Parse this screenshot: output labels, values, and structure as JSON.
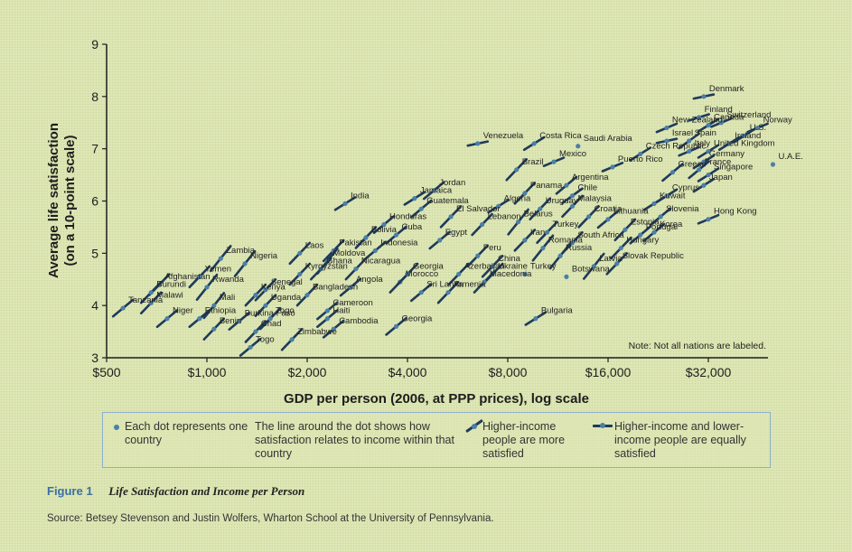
{
  "chart_data": {
    "type": "scatter",
    "xlabel": "GDP per person (2006, at PPP prices), log scale",
    "ylabel_line1": "Average life satisfaction",
    "ylabel_line2": "(on a 10-point scale)",
    "x_scale": "log",
    "xlim": [
      500,
      55000
    ],
    "ylim": [
      3,
      9
    ],
    "x_ticks": [
      500,
      1000,
      2000,
      4000,
      8000,
      16000,
      32000
    ],
    "x_tick_labels": [
      "$500",
      "$1,000",
      "$2,000",
      "$4,000",
      "$8,000",
      "$16,000",
      "$32,000"
    ],
    "y_ticks": [
      3,
      4,
      5,
      6,
      7,
      8,
      9
    ],
    "y_tick_labels": [
      "3",
      "4",
      "5",
      "6",
      "7",
      "8",
      "9"
    ],
    "grid": false,
    "note": "Note: Not all nations are labeled.",
    "points": [
      {
        "label": "Denmark",
        "x": 31000,
        "y": 8.0,
        "slope": 0.1
      },
      {
        "label": "Finland",
        "x": 30000,
        "y": 7.6,
        "slope": 0.15
      },
      {
        "label": "Switzerland",
        "x": 35000,
        "y": 7.5,
        "slope": 0.2
      },
      {
        "label": "Canada",
        "x": 32000,
        "y": 7.45,
        "slope": 0.3
      },
      {
        "label": "Norway",
        "x": 45000,
        "y": 7.4,
        "slope": 0.2
      },
      {
        "label": "U.S.",
        "x": 41000,
        "y": 7.25,
        "slope": 0.3
      },
      {
        "label": "New Zealand",
        "x": 24000,
        "y": 7.4,
        "slope": 0.2
      },
      {
        "label": "Ireland",
        "x": 37000,
        "y": 7.1,
        "slope": 0.3
      },
      {
        "label": "Israel",
        "x": 24000,
        "y": 7.15,
        "slope": 0.1
      },
      {
        "label": "Spain",
        "x": 28000,
        "y": 7.15,
        "slope": 0.35
      },
      {
        "label": "United Kingdom",
        "x": 32000,
        "y": 6.95,
        "slope": 0.3
      },
      {
        "label": "Italy",
        "x": 28000,
        "y": 6.95,
        "slope": 0.2
      },
      {
        "label": "Saudi Arabia",
        "x": 13000,
        "y": 7.05,
        "slope": 0
      },
      {
        "label": "Costa Rica",
        "x": 9600,
        "y": 7.1,
        "slope": 0.3
      },
      {
        "label": "Venezuela",
        "x": 6500,
        "y": 7.1,
        "slope": 0.1
      },
      {
        "label": "Mexico",
        "x": 11000,
        "y": 6.75,
        "slope": 0.2
      },
      {
        "label": "Czech Republic",
        "x": 20000,
        "y": 6.9,
        "slope": 0.3
      },
      {
        "label": "Puerto Rico",
        "x": 16500,
        "y": 6.65,
        "slope": 0.2
      },
      {
        "label": "Germany",
        "x": 31000,
        "y": 6.75,
        "slope": 0.3
      },
      {
        "label": "Greece",
        "x": 25000,
        "y": 6.55,
        "slope": 0.4
      },
      {
        "label": "France",
        "x": 30000,
        "y": 6.6,
        "slope": 0.4
      },
      {
        "label": "U.A.E.",
        "x": 50000,
        "y": 6.7,
        "slope": 0
      },
      {
        "label": "Singapore",
        "x": 32000,
        "y": 6.5,
        "slope": 0.3
      },
      {
        "label": "Japan",
        "x": 31000,
        "y": 6.3,
        "slope": 0.3
      },
      {
        "label": "Brazil",
        "x": 8500,
        "y": 6.6,
        "slope": 0.5
      },
      {
        "label": "Argentina",
        "x": 12000,
        "y": 6.3,
        "slope": 0.4
      },
      {
        "label": "Chile",
        "x": 12500,
        "y": 6.1,
        "slope": 0.35
      },
      {
        "label": "Panama",
        "x": 9000,
        "y": 6.15,
        "slope": 0.5
      },
      {
        "label": "Jordan",
        "x": 4800,
        "y": 6.2,
        "slope": 0.4
      },
      {
        "label": "Jamaica",
        "x": 4200,
        "y": 6.05,
        "slope": 0.3
      },
      {
        "label": "Guatemala",
        "x": 4400,
        "y": 5.85,
        "slope": 0.4
      },
      {
        "label": "Uruguay",
        "x": 10000,
        "y": 5.85,
        "slope": 0.5
      },
      {
        "label": "Malaysia",
        "x": 12500,
        "y": 5.9,
        "slope": 0.5
      },
      {
        "label": "Kuwait",
        "x": 22000,
        "y": 5.95,
        "slope": 0.3
      },
      {
        "label": "Cyprus",
        "x": 24000,
        "y": 6.1,
        "slope": 0.3
      },
      {
        "label": "Slovenia",
        "x": 23000,
        "y": 5.7,
        "slope": 0.4
      },
      {
        "label": "Korea",
        "x": 22000,
        "y": 5.4,
        "slope": 0.4
      },
      {
        "label": "Lithuania",
        "x": 16000,
        "y": 5.65,
        "slope": 0.4
      },
      {
        "label": "Croatia",
        "x": 14000,
        "y": 5.7,
        "slope": 0.5
      },
      {
        "label": "Algeria",
        "x": 7500,
        "y": 5.9,
        "slope": 0.3
      },
      {
        "label": "El Salvador",
        "x": 5400,
        "y": 5.7,
        "slope": 0.5
      },
      {
        "label": "Honduras",
        "x": 3400,
        "y": 5.55,
        "slope": 0.4
      },
      {
        "label": "India",
        "x": 2600,
        "y": 5.95,
        "slope": 0.3
      },
      {
        "label": "Bolivia",
        "x": 3000,
        "y": 5.3,
        "slope": 0.5
      },
      {
        "label": "Cuba",
        "x": 3700,
        "y": 5.35,
        "slope": 0.4
      },
      {
        "label": "Egypt",
        "x": 5000,
        "y": 5.25,
        "slope": 0.4
      },
      {
        "label": "Lebanon",
        "x": 6700,
        "y": 5.55,
        "slope": 0.5
      },
      {
        "label": "Belarus",
        "x": 8600,
        "y": 5.6,
        "slope": 0.6
      },
      {
        "label": "Turkey",
        "x": 10500,
        "y": 5.4,
        "slope": 0.5
      },
      {
        "label": "Iran",
        "x": 9000,
        "y": 5.25,
        "slope": 0.5
      },
      {
        "label": "Romania",
        "x": 10200,
        "y": 5.1,
        "slope": 0.6
      },
      {
        "label": "South Africa",
        "x": 12500,
        "y": 5.2,
        "slope": 0.5
      },
      {
        "label": "Estonia",
        "x": 18000,
        "y": 5.45,
        "slope": 0.5
      },
      {
        "label": "Portugal",
        "x": 20000,
        "y": 5.35,
        "slope": 0.4
      },
      {
        "label": "Hungary",
        "x": 17500,
        "y": 5.1,
        "slope": 0.5
      },
      {
        "label": "Slovak Republic",
        "x": 17000,
        "y": 4.8,
        "slope": 0.5
      },
      {
        "label": "Hong Kong",
        "x": 32000,
        "y": 5.65,
        "slope": 0.2
      },
      {
        "label": "Russia",
        "x": 11500,
        "y": 4.95,
        "slope": 0.6
      },
      {
        "label": "Latvia",
        "x": 14500,
        "y": 4.75,
        "slope": 0.6
      },
      {
        "label": "Botswana",
        "x": 12000,
        "y": 4.55,
        "slope": 0
      },
      {
        "label": "Peru",
        "x": 6500,
        "y": 4.95,
        "slope": 0.5
      },
      {
        "label": "China",
        "x": 7200,
        "y": 4.75,
        "slope": 0.5
      },
      {
        "label": "Ukraine",
        "x": 7200,
        "y": 4.6,
        "slope": 0.5
      },
      {
        "label": "Macedonia",
        "x": 6800,
        "y": 4.45,
        "slope": 0.5
      },
      {
        "label": "Turkey",
        "x": 9000,
        "y": 4.6,
        "slope": 0
      },
      {
        "label": "Indonesia",
        "x": 3200,
        "y": 5.05,
        "slope": 0.4
      },
      {
        "label": "Nicaragua",
        "x": 2800,
        "y": 4.7,
        "slope": 0.5
      },
      {
        "label": "Morocco",
        "x": 3800,
        "y": 4.45,
        "slope": 0.5
      },
      {
        "label": "Azerbaijan",
        "x": 5700,
        "y": 4.6,
        "slope": 0.5
      },
      {
        "label": "Georgia",
        "x": 4000,
        "y": 4.6,
        "slope": 0.5
      },
      {
        "label": "Sri Lanka",
        "x": 4400,
        "y": 4.25,
        "slope": 0.4
      },
      {
        "label": "Armenia",
        "x": 5300,
        "y": 4.25,
        "slope": 0.5
      },
      {
        "label": "Pakistan",
        "x": 2400,
        "y": 5.05,
        "slope": 0.5
      },
      {
        "label": "Laos",
        "x": 1900,
        "y": 5.0,
        "slope": 0.5
      },
      {
        "label": "Moldova",
        "x": 2300,
        "y": 4.85,
        "slope": 0.6
      },
      {
        "label": "Ghana",
        "x": 2200,
        "y": 4.7,
        "slope": 0.5
      },
      {
        "label": "Kyrgyzstan",
        "x": 1900,
        "y": 4.6,
        "slope": 0.5
      },
      {
        "label": "Angola",
        "x": 2700,
        "y": 4.35,
        "slope": 0.4
      },
      {
        "label": "Bangladesh",
        "x": 2000,
        "y": 4.2,
        "slope": 0.5
      },
      {
        "label": "Cameroon",
        "x": 2300,
        "y": 3.9,
        "slope": 0.4
      },
      {
        "label": "Haiti",
        "x": 2300,
        "y": 3.75,
        "slope": 0.4
      },
      {
        "label": "Cambodia",
        "x": 2400,
        "y": 3.55,
        "slope": 0.4
      },
      {
        "label": "Georgia",
        "x": 3700,
        "y": 3.6,
        "slope": 0.4
      },
      {
        "label": "Bulgaria",
        "x": 9700,
        "y": 3.75,
        "slope": 0.3
      },
      {
        "label": "Zimbabwe",
        "x": 1800,
        "y": 3.35,
        "slope": 0.5
      },
      {
        "label": "Zambia",
        "x": 1100,
        "y": 4.9,
        "slope": 0.6
      },
      {
        "label": "Nigeria",
        "x": 1300,
        "y": 4.8,
        "slope": 0.6
      },
      {
        "label": "Yemen",
        "x": 950,
        "y": 4.55,
        "slope": 0.5
      },
      {
        "label": "Afghanistan",
        "x": 720,
        "y": 4.4,
        "slope": 0.5
      },
      {
        "label": "Burundi",
        "x": 680,
        "y": 4.25,
        "slope": 0.5
      },
      {
        "label": "Malawi",
        "x": 680,
        "y": 4.05,
        "slope": 0.5
      },
      {
        "label": "Rwanda",
        "x": 1000,
        "y": 4.35,
        "slope": 0.6
      },
      {
        "label": "Senegal",
        "x": 1500,
        "y": 4.3,
        "slope": 0.5
      },
      {
        "label": "Kenya",
        "x": 1400,
        "y": 4.2,
        "slope": 0.5
      },
      {
        "label": "Mali",
        "x": 1050,
        "y": 4.0,
        "slope": 0.6
      },
      {
        "label": "Uganda",
        "x": 1500,
        "y": 4.0,
        "slope": 0.5
      },
      {
        "label": "Tanzania",
        "x": 560,
        "y": 3.95,
        "slope": 0.4
      },
      {
        "label": "Niger",
        "x": 760,
        "y": 3.75,
        "slope": 0.4
      },
      {
        "label": "Togo",
        "x": 1550,
        "y": 3.75,
        "slope": 0.5
      },
      {
        "label": "Benin",
        "x": 1050,
        "y": 3.55,
        "slope": 0.5
      },
      {
        "label": "Burkina Faso",
        "x": 1250,
        "y": 3.7,
        "slope": 0.4
      },
      {
        "label": "Chad",
        "x": 1400,
        "y": 3.5,
        "slope": 0.5
      },
      {
        "label": "Togo",
        "x": 1350,
        "y": 3.2,
        "slope": 0.4
      },
      {
        "label": "Ethiopia",
        "x": 950,
        "y": 3.75,
        "slope": 0.4
      }
    ]
  },
  "legend": {
    "item1": "Each dot represents one country",
    "item2": "The line around the dot shows how satisfaction relates to income within that country",
    "item3": "Higher-income people are more satisfied",
    "item4": "Higher-income and lower-income people are equally satisfied"
  },
  "caption": {
    "figure_number": "Figure 1",
    "figure_title": "Life Satisfaction and Income per Person"
  },
  "source": "Source: Betsey Stevenson and Justin Wolfers, Wharton School at the University of Pennsylvania.",
  "colors": {
    "dot": "#4a7fa8",
    "line": "#1f3a5a",
    "axis": "#1d1d1d",
    "accent": "#3a6ea5",
    "leader": "#8fb0cf"
  }
}
